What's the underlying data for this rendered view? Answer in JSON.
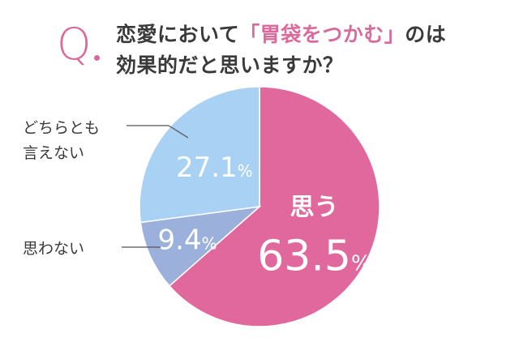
{
  "title": {
    "line1_before": "恋愛において",
    "line1_highlight": "「胃袋をつかむ」",
    "line1_after": "のは",
    "line2": "効果的だと思いますか？"
  },
  "q_mark": "Q",
  "colors": {
    "accent": "#d96a9b",
    "yes": "#e0689c",
    "no": "#9cb0dc",
    "neutral": "#a9d1f3",
    "text": "#3a3a3a"
  },
  "chart_data": {
    "type": "pie",
    "title": "恋愛において「胃袋をつかむ」のは効果的だと思いますか？",
    "slices": [
      {
        "label": "思う",
        "value": 63.5,
        "display": "63.5",
        "unit": "%",
        "color": "#e0689c"
      },
      {
        "label": "思わない",
        "value": 9.4,
        "display": "9.4",
        "unit": "%",
        "color": "#9cb0dc"
      },
      {
        "label": "どちらとも言えない",
        "value": 27.1,
        "display": "27.1",
        "unit": "%",
        "color": "#a9d1f3"
      }
    ],
    "start": "12 o'clock",
    "direction": "clockwise"
  },
  "labels": {
    "yes": "思う",
    "no": "思わない",
    "neutral_line1": "どちらとも",
    "neutral_line2": "言えない"
  }
}
